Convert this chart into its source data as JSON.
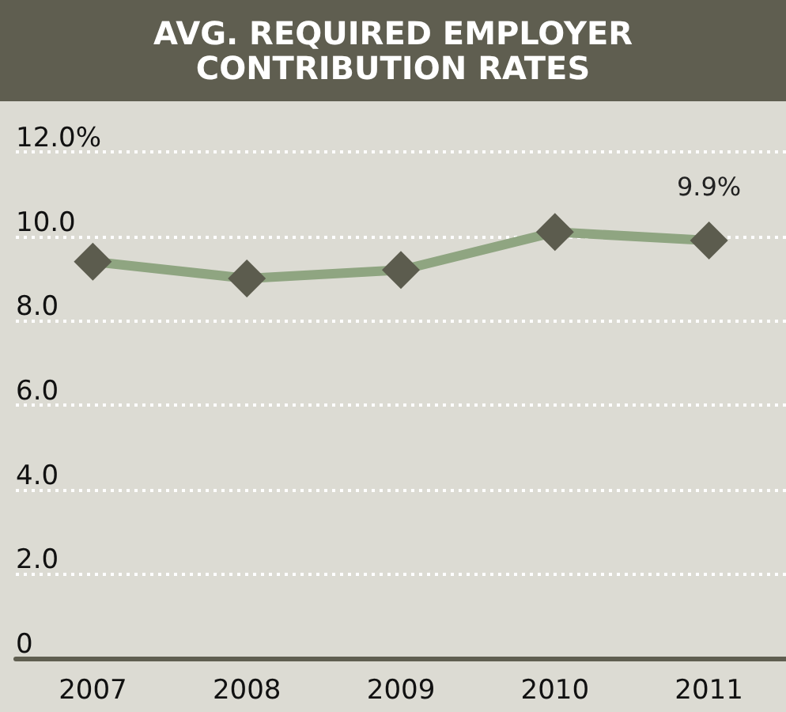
{
  "chart_data": {
    "type": "line",
    "title": "AVG. REQUIRED EMPLOYER CONTRIBUTION RATES",
    "categories": [
      "2007",
      "2008",
      "2009",
      "2010",
      "2011"
    ],
    "series": [
      {
        "color": "#8fa581",
        "values": [
          9.4,
          9.0,
          9.2,
          10.1,
          9.9
        ],
        "value_labels": [
          null,
          null,
          null,
          null,
          "9.9%"
        ]
      }
    ],
    "ylim": [
      0,
      12
    ],
    "yticks": [
      0,
      {
        "value": 2,
        "label": "2.0"
      },
      {
        "value": 4,
        "label": "4.0"
      },
      {
        "value": 6,
        "label": "6.0"
      },
      {
        "value": 8,
        "label": "8.0"
      },
      {
        "value": 10,
        "label": "10.0"
      },
      {
        "value": 12,
        "label": "12.0%"
      }
    ],
    "grid": "y",
    "marker": "diamond",
    "line_style": "solid"
  }
}
